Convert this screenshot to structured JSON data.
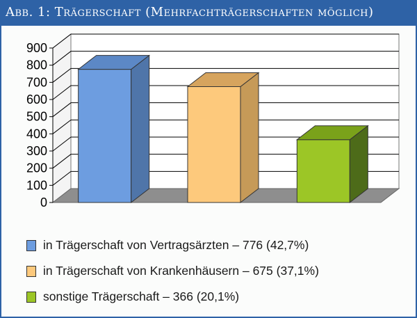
{
  "header": {
    "title": "Abb. 1: Trägerschaft (Mehrfachträgerschaften möglich)"
  },
  "chart_data": {
    "type": "bar",
    "categories": [
      "in Trägerschaft von Vertragsärzten – 776 (42,7%)",
      "in Trägerschaft von Krankenhäusern – 675 (37,1%)",
      "sonstige Trägerschaft – 366 (20,1%)"
    ],
    "values": [
      776,
      675,
      366
    ],
    "ylim": [
      0,
      900
    ],
    "yticks": [
      "0",
      "100",
      "200",
      "300",
      "400",
      "500",
      "600",
      "700",
      "800",
      "900"
    ],
    "grid": true,
    "legend_position": "bottom",
    "colors": {
      "bars": [
        "#6d9de0",
        "#fdc97c",
        "#9cc626"
      ],
      "bar_sides": [
        "#4f75a9",
        "#c69a58",
        "#4d6b19"
      ],
      "bar_tops": [
        "#5c88c6",
        "#d6a45e",
        "#7aa21a"
      ],
      "floor": "#8e8e8e",
      "grid": "#000000"
    }
  }
}
